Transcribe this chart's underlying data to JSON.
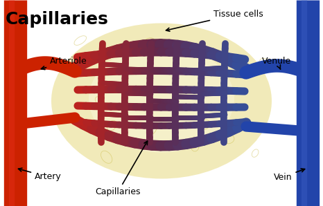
{
  "title": "Capillaries",
  "background_color": "#ffffff",
  "fig_width": 4.66,
  "fig_height": 2.98,
  "labels": {
    "title": {
      "text": "Capillaries",
      "fontsize": 18,
      "fontweight": "bold"
    },
    "tissue_cells": {
      "text": "Tissue cells",
      "fontsize": 9
    },
    "arteriole": {
      "text": "Arteriole",
      "fontsize": 9
    },
    "artery": {
      "text": "Artery",
      "fontsize": 9
    },
    "capillaries": {
      "text": "Capillaries",
      "fontsize": 9
    },
    "venule": {
      "text": "Venule",
      "fontsize": 9
    },
    "vein": {
      "text": "Vein",
      "fontsize": 9
    }
  },
  "artery_color": "#cc2200",
  "vein_color": "#2244aa",
  "network_bg_color": "#f0e8b0"
}
